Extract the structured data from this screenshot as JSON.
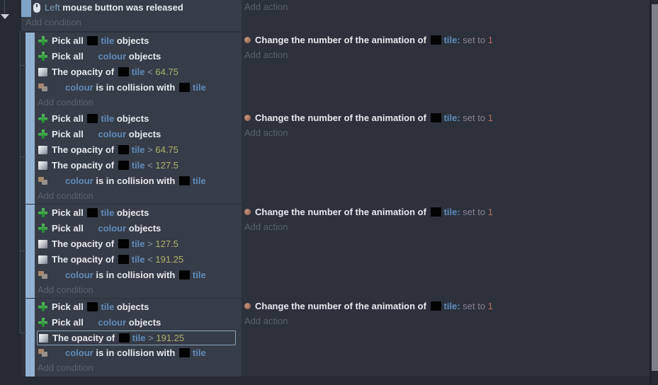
{
  "colors": {
    "event_background": "#363c48",
    "drag_handle_blue": "#93b2d1",
    "object_name_blue": "#5f8cba",
    "number_olive": "#abb46a",
    "value_salmon": "#bd6f5c",
    "muted_link_gray": "#5b626d",
    "selection_border": "#8aa5c0"
  },
  "top_event": {
    "condition_param": "Left",
    "condition_text": " mouse button was released",
    "add_condition": "Add condition",
    "add_action": "Add action"
  },
  "action_row": [
    {
      "s": "anim-icon"
    },
    {
      "s": "plain",
      "t": "Change the number of the animation of "
    },
    {
      "s": "thumb"
    },
    {
      "s": "object",
      "t": "tile:"
    },
    {
      "s": "muted",
      "t": " set to "
    },
    {
      "s": "val",
      "t": "1"
    }
  ],
  "add_action": "Add action",
  "add_condition": "Add condition",
  "blocks": [
    {
      "selected": -1,
      "rows": [
        [
          {
            "s": "pick-icon"
          },
          {
            "s": "plain",
            "t": "Pick all "
          },
          {
            "s": "thumb"
          },
          {
            "s": "object",
            "t": "tile"
          },
          {
            "s": "plain",
            "t": " objects"
          }
        ],
        [
          {
            "s": "pick-icon"
          },
          {
            "s": "plain",
            "t": "Pick all "
          },
          {
            "s": "spacer"
          },
          {
            "s": "object",
            "t": "colour"
          },
          {
            "s": "plain",
            "t": " objects"
          }
        ],
        [
          {
            "s": "opacity-icon"
          },
          {
            "s": "plain",
            "t": "The opacity of "
          },
          {
            "s": "thumb"
          },
          {
            "s": "object",
            "t": "tile"
          },
          {
            "s": "op",
            "t": " < "
          },
          {
            "s": "num",
            "t": "64.75"
          }
        ],
        [
          {
            "s": "collision-icon"
          },
          {
            "s": "spacer"
          },
          {
            "s": "object",
            "t": "colour"
          },
          {
            "s": "plain",
            "t": " is in collision with "
          },
          {
            "s": "thumb"
          },
          {
            "s": "object",
            "t": "tile"
          }
        ]
      ]
    },
    {
      "selected": -1,
      "rows": [
        [
          {
            "s": "pick-icon"
          },
          {
            "s": "plain",
            "t": "Pick all "
          },
          {
            "s": "thumb"
          },
          {
            "s": "object",
            "t": "tile"
          },
          {
            "s": "plain",
            "t": " objects"
          }
        ],
        [
          {
            "s": "pick-icon"
          },
          {
            "s": "plain",
            "t": "Pick all "
          },
          {
            "s": "spacer"
          },
          {
            "s": "object",
            "t": "colour"
          },
          {
            "s": "plain",
            "t": " objects"
          }
        ],
        [
          {
            "s": "opacity-icon"
          },
          {
            "s": "plain",
            "t": "The opacity of "
          },
          {
            "s": "thumb"
          },
          {
            "s": "object",
            "t": "tile"
          },
          {
            "s": "op",
            "t": " > "
          },
          {
            "s": "num",
            "t": "64.75"
          }
        ],
        [
          {
            "s": "opacity-icon"
          },
          {
            "s": "plain",
            "t": "The opacity of "
          },
          {
            "s": "thumb"
          },
          {
            "s": "object",
            "t": "tile"
          },
          {
            "s": "op",
            "t": " < "
          },
          {
            "s": "num",
            "t": "127.5"
          }
        ],
        [
          {
            "s": "collision-icon"
          },
          {
            "s": "spacer"
          },
          {
            "s": "object",
            "t": "colour"
          },
          {
            "s": "plain",
            "t": " is in collision with "
          },
          {
            "s": "thumb"
          },
          {
            "s": "object",
            "t": "tile"
          }
        ]
      ]
    },
    {
      "selected": -1,
      "rows": [
        [
          {
            "s": "pick-icon"
          },
          {
            "s": "plain",
            "t": "Pick all "
          },
          {
            "s": "thumb"
          },
          {
            "s": "object",
            "t": "tile"
          },
          {
            "s": "plain",
            "t": " objects"
          }
        ],
        [
          {
            "s": "pick-icon"
          },
          {
            "s": "plain",
            "t": "Pick all "
          },
          {
            "s": "spacer"
          },
          {
            "s": "object",
            "t": "colour"
          },
          {
            "s": "plain",
            "t": " objects"
          }
        ],
        [
          {
            "s": "opacity-icon"
          },
          {
            "s": "plain",
            "t": "The opacity of "
          },
          {
            "s": "thumb"
          },
          {
            "s": "object",
            "t": "tile"
          },
          {
            "s": "op",
            "t": " > "
          },
          {
            "s": "num",
            "t": "127.5"
          }
        ],
        [
          {
            "s": "opacity-icon"
          },
          {
            "s": "plain",
            "t": "The opacity of "
          },
          {
            "s": "thumb"
          },
          {
            "s": "object",
            "t": "tile"
          },
          {
            "s": "op",
            "t": " < "
          },
          {
            "s": "num",
            "t": "191.25"
          }
        ],
        [
          {
            "s": "collision-icon"
          },
          {
            "s": "spacer"
          },
          {
            "s": "object",
            "t": "colour"
          },
          {
            "s": "plain",
            "t": " is in collision with "
          },
          {
            "s": "thumb"
          },
          {
            "s": "object",
            "t": "tile"
          }
        ]
      ]
    },
    {
      "selected": 2,
      "rows": [
        [
          {
            "s": "pick-icon"
          },
          {
            "s": "plain",
            "t": "Pick all "
          },
          {
            "s": "thumb"
          },
          {
            "s": "object",
            "t": "tile"
          },
          {
            "s": "plain",
            "t": " objects"
          }
        ],
        [
          {
            "s": "pick-icon"
          },
          {
            "s": "plain",
            "t": "Pick all "
          },
          {
            "s": "spacer"
          },
          {
            "s": "object",
            "t": "colour"
          },
          {
            "s": "plain",
            "t": " objects"
          }
        ],
        [
          {
            "s": "opacity-icon"
          },
          {
            "s": "plain",
            "t": "The opacity of "
          },
          {
            "s": "thumb"
          },
          {
            "s": "object",
            "t": "tile"
          },
          {
            "s": "op",
            "t": " > "
          },
          {
            "s": "num",
            "t": "191.25"
          }
        ],
        [
          {
            "s": "collision-icon"
          },
          {
            "s": "spacer"
          },
          {
            "s": "object",
            "t": "colour"
          },
          {
            "s": "plain",
            "t": " is in collision with "
          },
          {
            "s": "thumb"
          },
          {
            "s": "object",
            "t": "tile"
          }
        ]
      ]
    }
  ]
}
